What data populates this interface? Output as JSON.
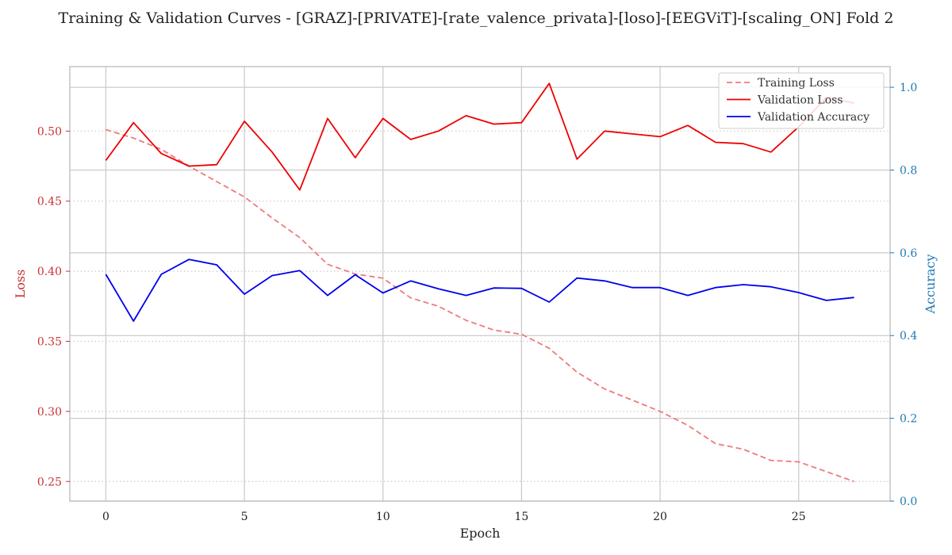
{
  "chart_data": {
    "type": "line",
    "title": "Training & Validation Curves - [GRAZ]-[PRIVATE]-[rate_valence_privata]-[loso]-[EEGViT]-[scaling_ON] Fold 2",
    "xlabel": "Epoch",
    "ylabel_left": "Loss",
    "ylabel_right": "Accuracy",
    "xlim": [
      -1.3,
      28.3
    ],
    "ylim_left": [
      0.236,
      0.546
    ],
    "ylim_right": [
      0.0,
      1.05
    ],
    "x_ticks": [
      0,
      5,
      10,
      15,
      20,
      25
    ],
    "y_ticks_left": [
      0.25,
      0.3,
      0.35,
      0.4,
      0.45,
      0.5
    ],
    "y_ticks_right": [
      0.0,
      0.2,
      0.4,
      0.6,
      0.8,
      1.0
    ],
    "x_tick_labels": [
      "0",
      "5",
      "10",
      "15",
      "20",
      "25"
    ],
    "y_tick_labels_left": [
      "0.25",
      "0.30",
      "0.35",
      "0.40",
      "0.45",
      "0.50"
    ],
    "y_tick_labels_right": [
      "0.0",
      "0.2",
      "0.4",
      "0.6",
      "0.8",
      "1.0"
    ],
    "grid": true,
    "legend_position": "top-right",
    "colors": {
      "training_loss": "#ee7b7b",
      "validation_loss": "#ee0000",
      "validation_accuracy": "#0000ee",
      "left_axis": "#c83232",
      "right_axis": "#1f77b4",
      "grid": "#cccccc",
      "spine": "#bbbbbb"
    },
    "x": [
      0,
      1,
      2,
      3,
      4,
      5,
      6,
      7,
      8,
      9,
      10,
      11,
      12,
      13,
      14,
      15,
      16,
      17,
      18,
      19,
      20,
      21,
      22,
      23,
      24,
      25,
      26,
      27
    ],
    "series": [
      {
        "name": "Training Loss",
        "axis": "left",
        "style": "dashed",
        "values": [
          0.501,
          0.495,
          0.487,
          0.475,
          0.464,
          0.453,
          0.438,
          0.424,
          0.405,
          0.398,
          0.395,
          0.381,
          0.375,
          0.365,
          0.358,
          0.355,
          0.345,
          0.328,
          0.316,
          0.308,
          0.3,
          0.29,
          0.277,
          0.273,
          0.265,
          0.264,
          0.257,
          0.25
        ]
      },
      {
        "name": "Validation Loss",
        "axis": "left",
        "style": "solid",
        "values": [
          0.479,
          0.506,
          0.484,
          0.475,
          0.476,
          0.507,
          0.485,
          0.458,
          0.509,
          0.481,
          0.509,
          0.494,
          0.5,
          0.511,
          0.505,
          0.506,
          0.534,
          0.48,
          0.5,
          0.498,
          0.496,
          0.504,
          0.492,
          0.491,
          0.485,
          0.503,
          0.524,
          0.52
        ]
      },
      {
        "name": "Validation Accuracy",
        "axis": "right",
        "style": "solid",
        "values": [
          0.548,
          0.435,
          0.548,
          0.584,
          0.571,
          0.5,
          0.545,
          0.557,
          0.497,
          0.547,
          0.503,
          0.532,
          0.513,
          0.497,
          0.515,
          0.514,
          0.481,
          0.539,
          0.532,
          0.516,
          0.516,
          0.497,
          0.516,
          0.523,
          0.518,
          0.504,
          0.485,
          0.492
        ]
      }
    ]
  }
}
